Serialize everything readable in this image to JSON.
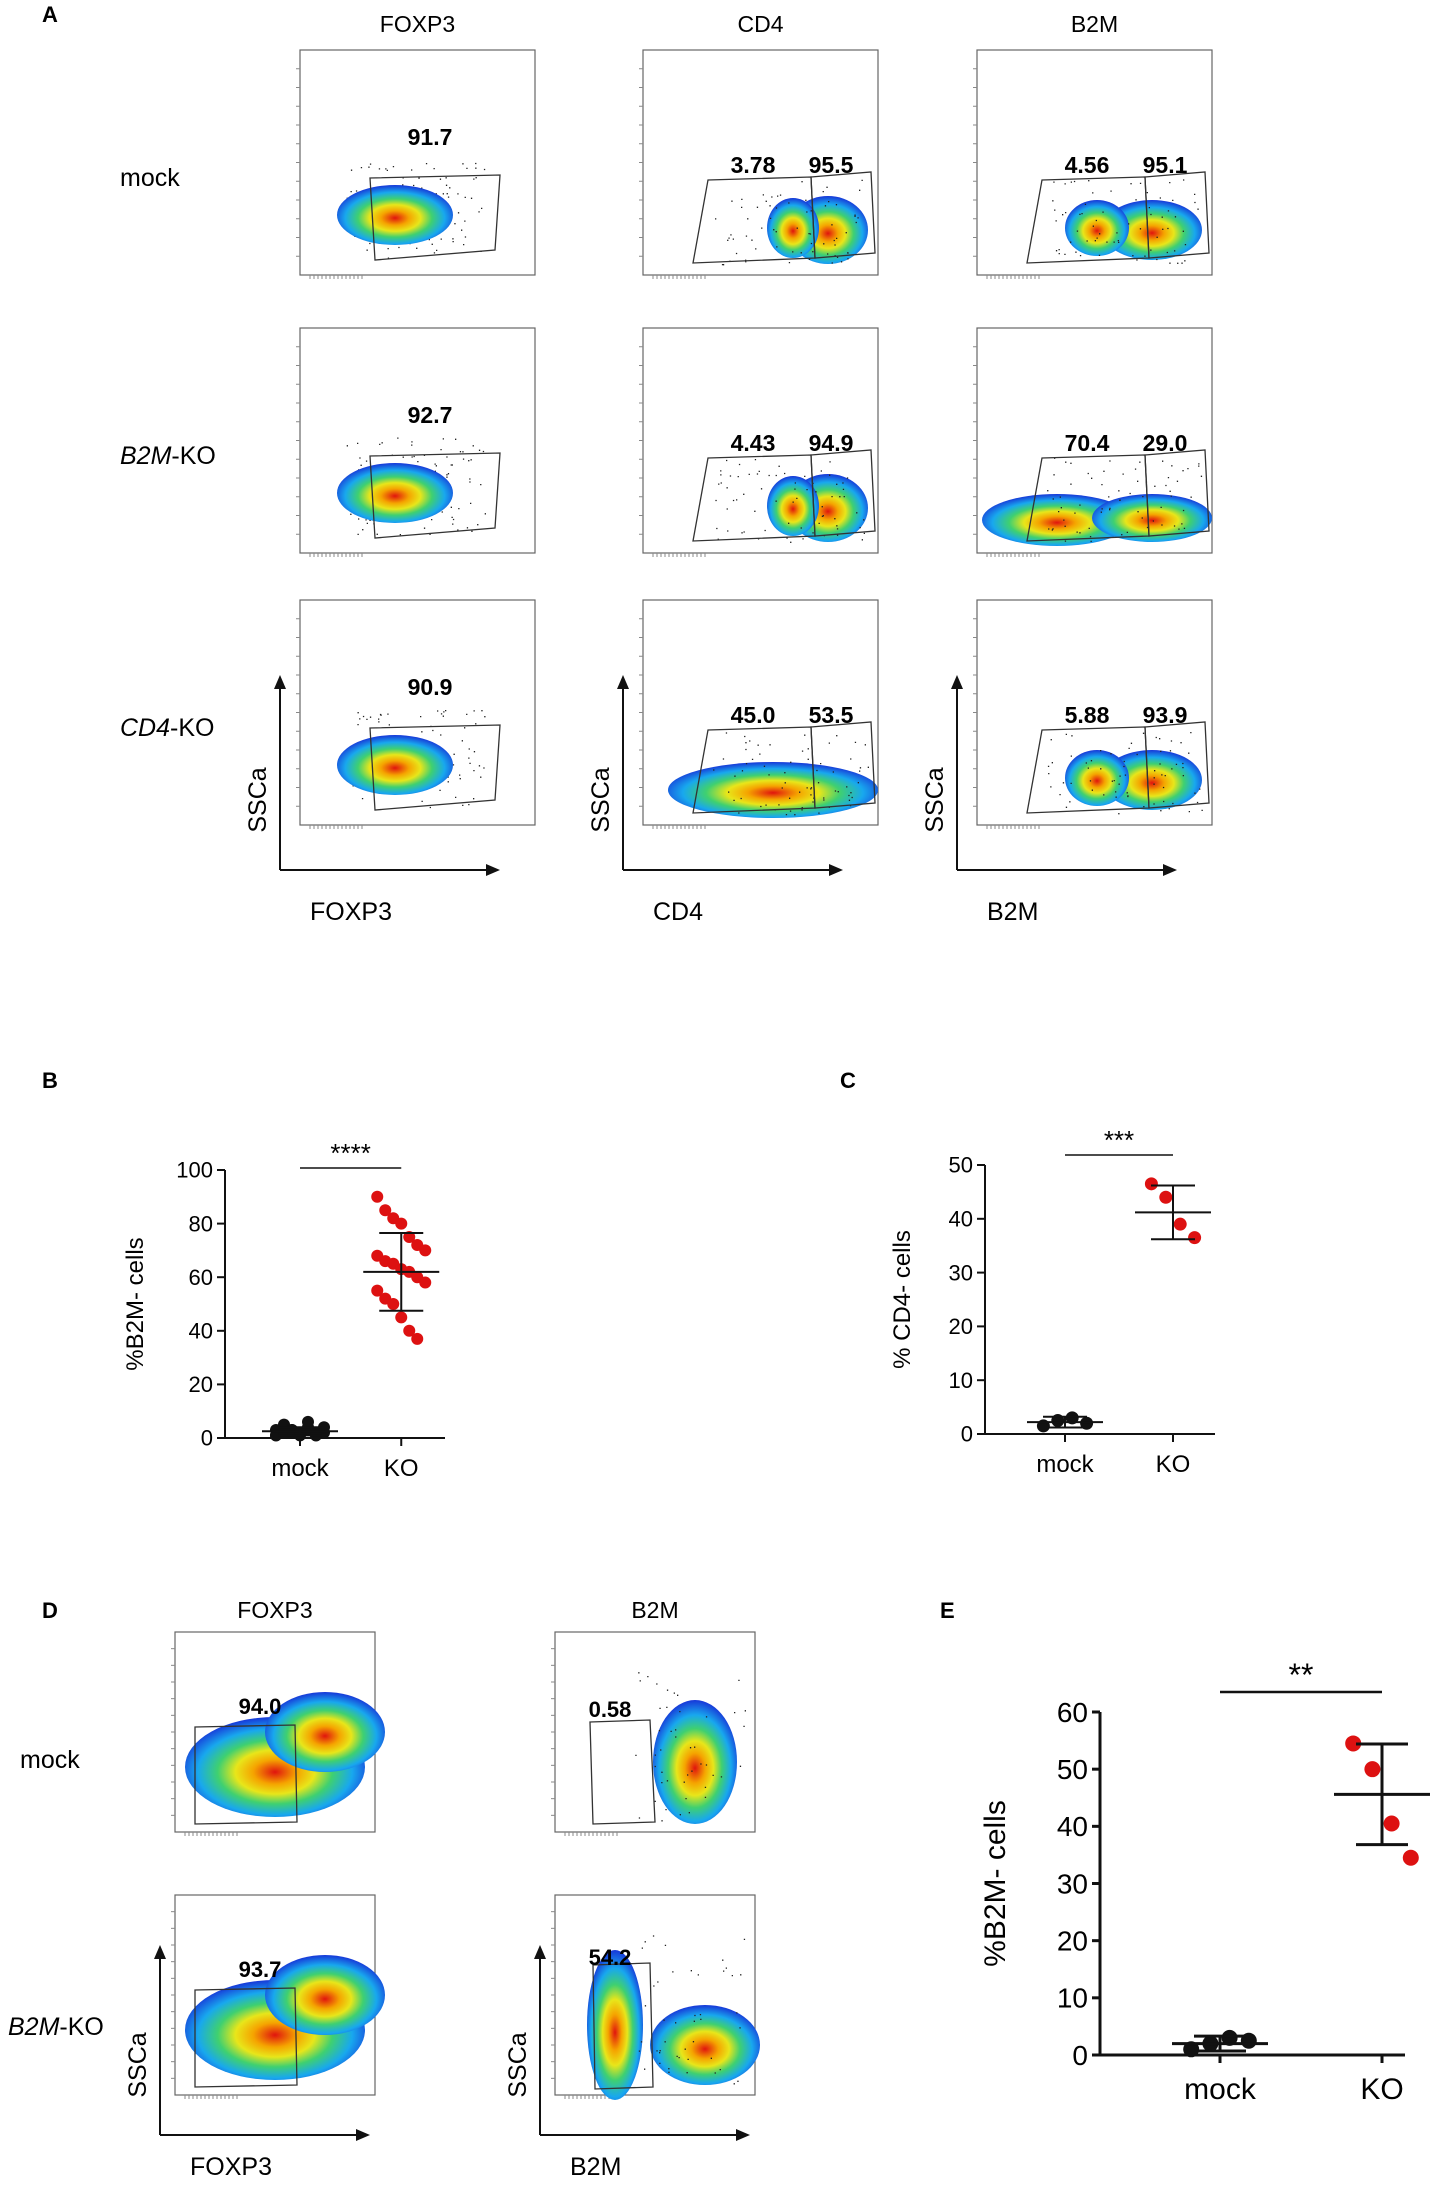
{
  "panel_letters": {
    "A": "A",
    "B": "B",
    "C": "C",
    "D": "D",
    "E": "E"
  },
  "panel_A": {
    "column_headers": [
      "FOXP3",
      "CD4",
      "B2M"
    ],
    "row_labels": [
      {
        "gene": "",
        "suffix": "mock"
      },
      {
        "gene": "B2M",
        "suffix": "-KO"
      },
      {
        "gene": "CD4",
        "suffix": "-KO"
      }
    ],
    "y_axis_label": "SSCa",
    "x_axis_labels": [
      "FOXP3",
      "CD4",
      "B2M"
    ],
    "gate_values": [
      [
        [
          "91.7"
        ],
        [
          "3.78",
          "95.5"
        ],
        [
          "4.56",
          "95.1"
        ]
      ],
      [
        [
          "92.7"
        ],
        [
          "4.43",
          "94.9"
        ],
        [
          "70.4",
          "29.0"
        ]
      ],
      [
        [
          "90.9"
        ],
        [
          "45.0",
          "53.5"
        ],
        [
          "5.88",
          "93.9"
        ]
      ]
    ]
  },
  "panel_D": {
    "column_headers": [
      "FOXP3",
      "B2M"
    ],
    "row_labels": [
      {
        "gene": "",
        "suffix": "mock"
      },
      {
        "gene": "B2M",
        "suffix": "-KO"
      }
    ],
    "y_axis_label": "SSCa",
    "x_axis_labels": [
      "FOXP3",
      "B2M"
    ],
    "gate_values": [
      [
        [
          "94.0"
        ],
        [
          "0.58"
        ]
      ],
      [
        [
          "93.7"
        ],
        [
          "54.2"
        ]
      ]
    ]
  },
  "chart_data": [
    {
      "panel": "B",
      "type": "scatter",
      "ylabel": "%B2M- cells",
      "categories": [
        "mock",
        "KO"
      ],
      "ylim": [
        0,
        100
      ],
      "yticks": [
        0,
        20,
        40,
        60,
        80,
        100
      ],
      "significance": "****",
      "series": [
        {
          "name": "mock",
          "color": "#111111",
          "mean": 2.5,
          "sd": 1.5,
          "values": [
            1,
            2,
            3,
            2,
            4,
            1,
            2,
            3,
            5,
            2,
            1,
            3,
            2,
            4,
            1,
            2,
            3,
            2,
            6,
            1
          ]
        },
        {
          "name": "KO",
          "color": "#dd1111",
          "mean": 62,
          "sd": 14.5,
          "values": [
            90,
            85,
            82,
            80,
            75,
            72,
            70,
            68,
            66,
            65,
            63,
            62,
            60,
            58,
            55,
            52,
            50,
            45,
            40,
            37
          ]
        }
      ]
    },
    {
      "panel": "C",
      "type": "scatter",
      "ylabel": "% CD4- cells",
      "categories": [
        "mock",
        "KO"
      ],
      "ylim": [
        0,
        50
      ],
      "yticks": [
        0,
        10,
        20,
        30,
        40,
        50
      ],
      "significance": "***",
      "series": [
        {
          "name": "mock",
          "color": "#111111",
          "mean": 2.2,
          "sd": 1.0,
          "values": [
            1.5,
            2.5,
            3.0,
            2.0
          ]
        },
        {
          "name": "KO",
          "color": "#dd1111",
          "mean": 41.2,
          "sd": 5.0,
          "values": [
            46.5,
            44.0,
            39.0,
            36.5
          ]
        }
      ]
    },
    {
      "panel": "E",
      "type": "scatter",
      "ylabel": "%B2M- cells",
      "categories": [
        "mock",
        "KO"
      ],
      "ylim": [
        0,
        60
      ],
      "yticks": [
        0,
        10,
        20,
        30,
        40,
        50,
        60
      ],
      "significance": "**",
      "series": [
        {
          "name": "mock",
          "color": "#111111",
          "mean": 2.0,
          "sd": 1.3,
          "values": [
            1.0,
            2.0,
            3.0,
            2.5
          ]
        },
        {
          "name": "KO",
          "color": "#dd1111",
          "mean": 45.6,
          "sd": 8.8,
          "values": [
            54.5,
            50.0,
            40.5,
            34.5
          ]
        }
      ]
    }
  ]
}
